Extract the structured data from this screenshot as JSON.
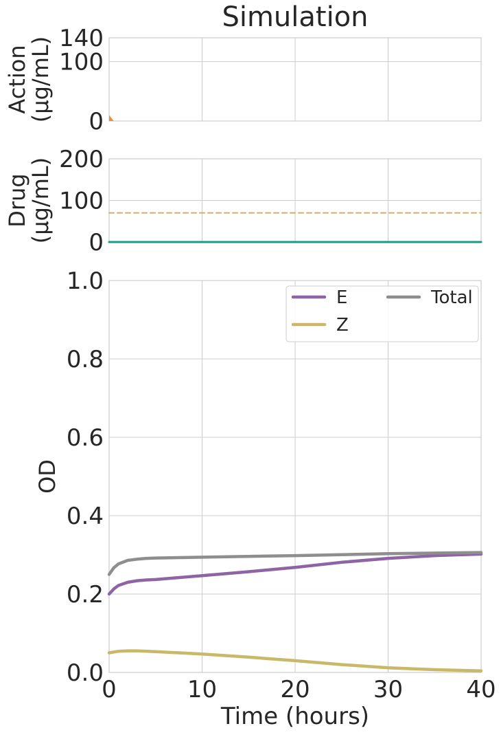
{
  "chart_data": [
    {
      "type": "area",
      "panel": "action",
      "title": "Simulation",
      "ylabel": [
        "Action",
        "(µg/mL)"
      ],
      "xlim": [
        0,
        40
      ],
      "ylim": [
        0,
        140
      ],
      "yticks": [
        0,
        100,
        140
      ],
      "grid": true,
      "series": [
        {
          "name": "",
          "color": "#f28e2b",
          "x": [
            0,
            0.5
          ],
          "values": [
            10,
            0
          ]
        }
      ]
    },
    {
      "type": "line",
      "panel": "drug",
      "ylabel": [
        "Drug",
        "(µg/mL)"
      ],
      "xlim": [
        0,
        40
      ],
      "ylim": [
        0,
        200
      ],
      "yticks": [
        0,
        100,
        200
      ],
      "grid": true,
      "series": [
        {
          "name": "",
          "color": "#1a9988",
          "style": "solid",
          "x": [
            0,
            40
          ],
          "values": [
            0,
            0
          ]
        },
        {
          "name": "",
          "color": "#d9ac5c",
          "style": "dashed",
          "x": [
            0,
            40
          ],
          "values": [
            70,
            70
          ]
        }
      ]
    },
    {
      "type": "line",
      "panel": "od",
      "xlabel": "Time (hours)",
      "ylabel": "OD",
      "xlim": [
        0,
        40
      ],
      "ylim": [
        0,
        1.0
      ],
      "xticks": [
        0,
        10,
        20,
        30,
        40
      ],
      "yticks": [
        0.0,
        0.2,
        0.4,
        0.6,
        0.8,
        1.0
      ],
      "ytick_labels": [
        "0.0",
        "0.2",
        "0.4",
        "0.6",
        "0.8",
        "1.0"
      ],
      "grid": true,
      "legend": {
        "placement": "top-right",
        "columns": 2
      },
      "series": [
        {
          "name": "E",
          "color": "#8f64a5",
          "x": [
            0,
            0.5,
            1,
            2,
            3,
            4,
            5,
            10,
            15,
            20,
            25,
            30,
            35,
            40
          ],
          "values": [
            0.2,
            0.213,
            0.222,
            0.23,
            0.234,
            0.236,
            0.237,
            0.247,
            0.257,
            0.268,
            0.281,
            0.291,
            0.298,
            0.302
          ]
        },
        {
          "name": "Z",
          "color": "#c8b868",
          "x": [
            0,
            1,
            2,
            3,
            5,
            10,
            15,
            20,
            25,
            30,
            35,
            40
          ],
          "values": [
            0.05,
            0.054,
            0.055,
            0.055,
            0.053,
            0.047,
            0.039,
            0.03,
            0.02,
            0.012,
            0.007,
            0.004
          ]
        },
        {
          "name": "Total",
          "color": "#8e8e8e",
          "x": [
            0,
            0.5,
            1,
            2,
            3,
            4,
            5,
            10,
            20,
            30,
            40
          ],
          "values": [
            0.25,
            0.267,
            0.277,
            0.286,
            0.289,
            0.291,
            0.292,
            0.294,
            0.298,
            0.303,
            0.306
          ]
        }
      ]
    }
  ]
}
